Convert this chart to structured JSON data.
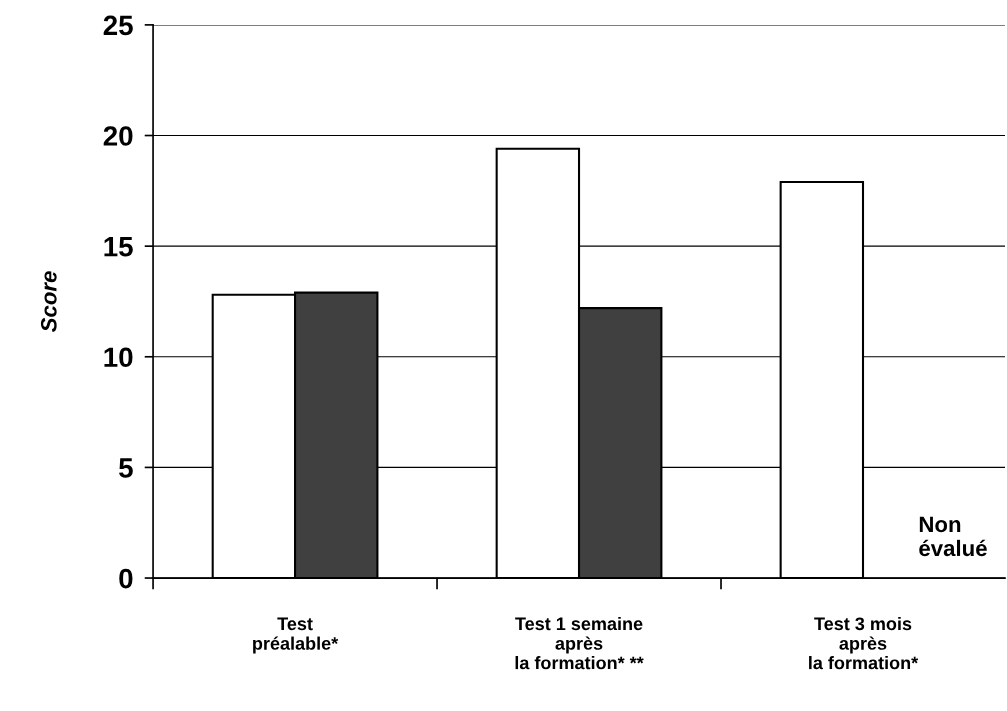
{
  "chart_data": {
    "type": "bar",
    "ylabel": "Score",
    "categories": [
      "Test\npréalable*",
      "Test 1 semaine\naprès\nla formation* **",
      "Test 3 mois\naprès\nla formation*"
    ],
    "series": [
      {
        "color": "#ffffff",
        "values": [
          12.8,
          19.4,
          17.9
        ]
      },
      {
        "color": "#404040",
        "values": [
          12.9,
          12.2,
          null
        ]
      }
    ],
    "ylim": [
      0,
      25
    ],
    "yticks": [
      0,
      5,
      10,
      15,
      20,
      25
    ],
    "grid": "y",
    "legend": false,
    "annotations": [
      "Non\névalué"
    ]
  }
}
